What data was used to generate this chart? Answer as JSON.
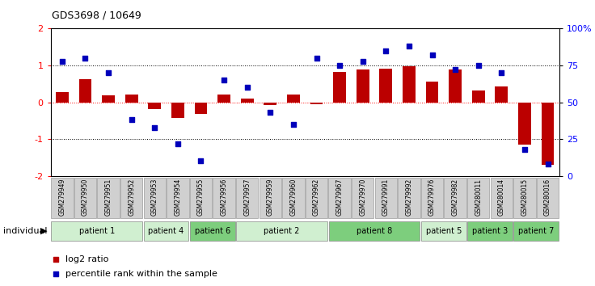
{
  "title": "GDS3698 / 10649",
  "samples": [
    "GSM279949",
    "GSM279950",
    "GSM279951",
    "GSM279952",
    "GSM279953",
    "GSM279954",
    "GSM279955",
    "GSM279956",
    "GSM279957",
    "GSM279959",
    "GSM279960",
    "GSM279962",
    "GSM279967",
    "GSM279970",
    "GSM279991",
    "GSM279992",
    "GSM279976",
    "GSM279982",
    "GSM280011",
    "GSM280014",
    "GSM280015",
    "GSM280016"
  ],
  "log2_ratio": [
    0.28,
    0.62,
    0.18,
    0.22,
    -0.18,
    -0.42,
    -0.32,
    0.2,
    0.1,
    -0.07,
    0.22,
    -0.05,
    0.82,
    0.88,
    0.92,
    0.98,
    0.55,
    0.88,
    0.32,
    0.42,
    -1.15,
    -1.7
  ],
  "percentile_rank": [
    78,
    80,
    70,
    38,
    33,
    22,
    10,
    65,
    60,
    43,
    35,
    80,
    75,
    78,
    85,
    88,
    82,
    72,
    75,
    70,
    18,
    8
  ],
  "patients": [
    {
      "label": "patient 1",
      "start": 0,
      "end": 4,
      "color": "#d0efd0"
    },
    {
      "label": "patient 4",
      "start": 4,
      "end": 6,
      "color": "#d0efd0"
    },
    {
      "label": "patient 6",
      "start": 6,
      "end": 8,
      "color": "#7dce7d"
    },
    {
      "label": "patient 2",
      "start": 8,
      "end": 12,
      "color": "#d0efd0"
    },
    {
      "label": "patient 8",
      "start": 12,
      "end": 16,
      "color": "#7dce7d"
    },
    {
      "label": "patient 5",
      "start": 16,
      "end": 18,
      "color": "#d0efd0"
    },
    {
      "label": "patient 3",
      "start": 18,
      "end": 20,
      "color": "#7dce7d"
    },
    {
      "label": "patient 7",
      "start": 20,
      "end": 22,
      "color": "#7dce7d"
    }
  ],
  "bar_color": "#bb0000",
  "dot_color": "#0000bb",
  "ylim": [
    -2,
    2
  ],
  "y2lim": [
    0,
    100
  ],
  "yticks": [
    -2,
    -1,
    0,
    1,
    2
  ],
  "y2ticks": [
    0,
    25,
    50,
    75,
    100
  ],
  "y2ticklabels": [
    "0",
    "25",
    "50",
    "75",
    "100%"
  ],
  "legend_log2": "log2 ratio",
  "legend_pct": "percentile rank within the sample",
  "xlabel_individual": "individual",
  "sample_box_color": "#d0d0d0",
  "sample_box_edge": "#888888"
}
